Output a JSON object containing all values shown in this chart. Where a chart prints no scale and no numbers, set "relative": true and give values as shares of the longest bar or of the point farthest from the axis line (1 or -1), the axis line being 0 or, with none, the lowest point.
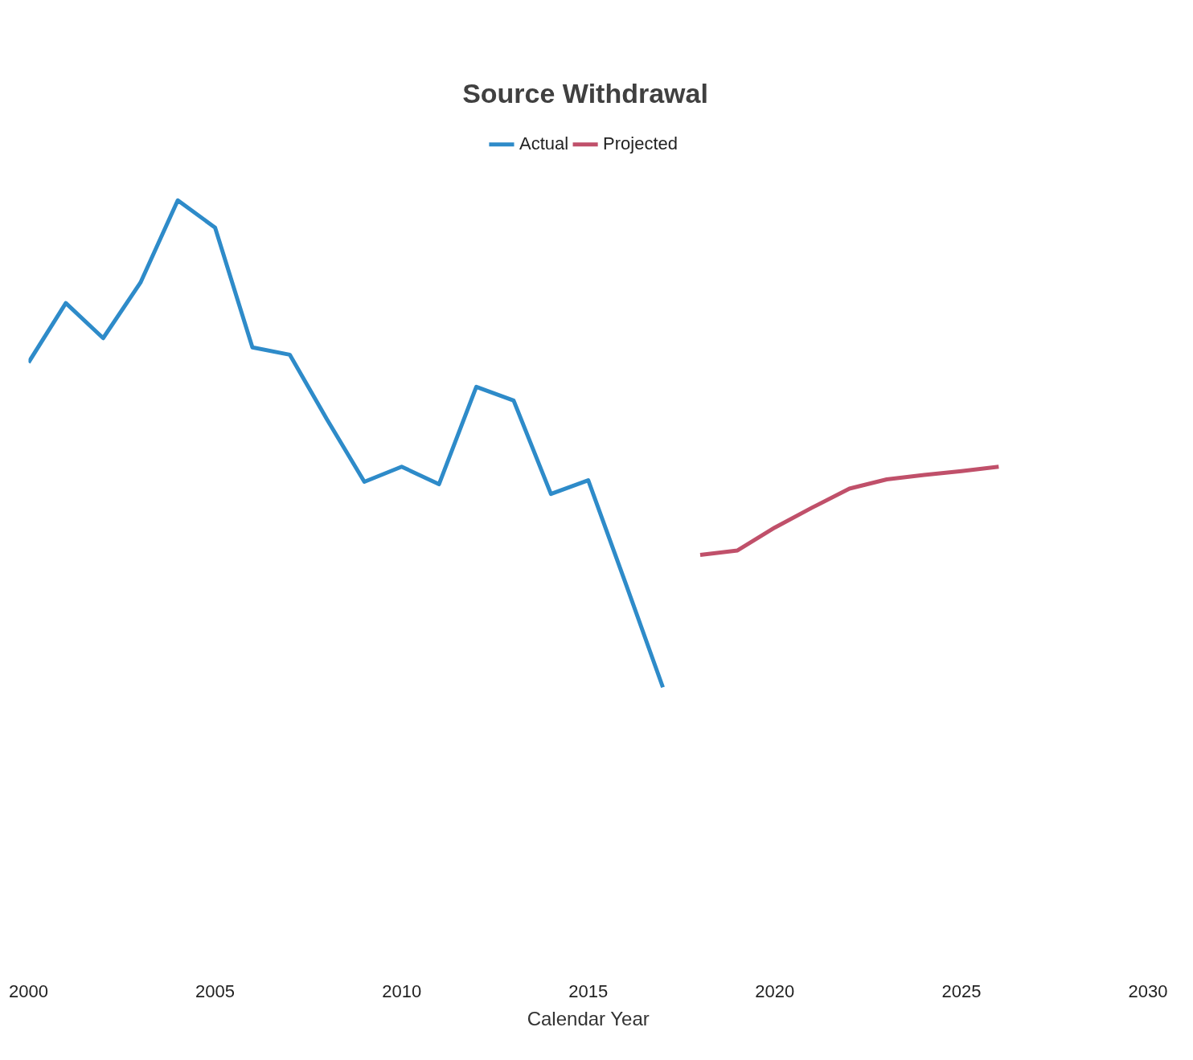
{
  "chart_data": {
    "type": "line",
    "title": "Source Withdrawal",
    "xlabel": "Calendar Year",
    "relative": true,
    "legend": "top",
    "marker": "none",
    "xlim": [
      2000,
      2030
    ],
    "xticks": [
      2000,
      2005,
      2010,
      2015,
      2020,
      2025,
      2030
    ],
    "series": [
      {
        "name": "Actual",
        "color": "#2e8bc9",
        "x": [
          2000,
          2001,
          2002,
          2003,
          2004,
          2005,
          2006,
          2007,
          2008,
          2009,
          2010,
          2011,
          2012,
          2013,
          2014,
          2015,
          2016,
          2017
        ],
        "values": [
          0.667,
          0.789,
          0.717,
          0.831,
          1,
          0.944,
          0.698,
          0.683,
          0.55,
          0.422,
          0.453,
          0.417,
          0.617,
          0.589,
          0.397,
          0.425,
          0.214,
          0
        ]
      },
      {
        "name": "Projected",
        "color": "#c0506a",
        "x": [
          2018,
          2019,
          2020,
          2021,
          2022,
          2023,
          2024,
          2025,
          2026
        ],
        "values": [
          0.272,
          0.281,
          0.328,
          0.369,
          0.408,
          0.427,
          0.436,
          0.444,
          0.453
        ]
      }
    ]
  }
}
